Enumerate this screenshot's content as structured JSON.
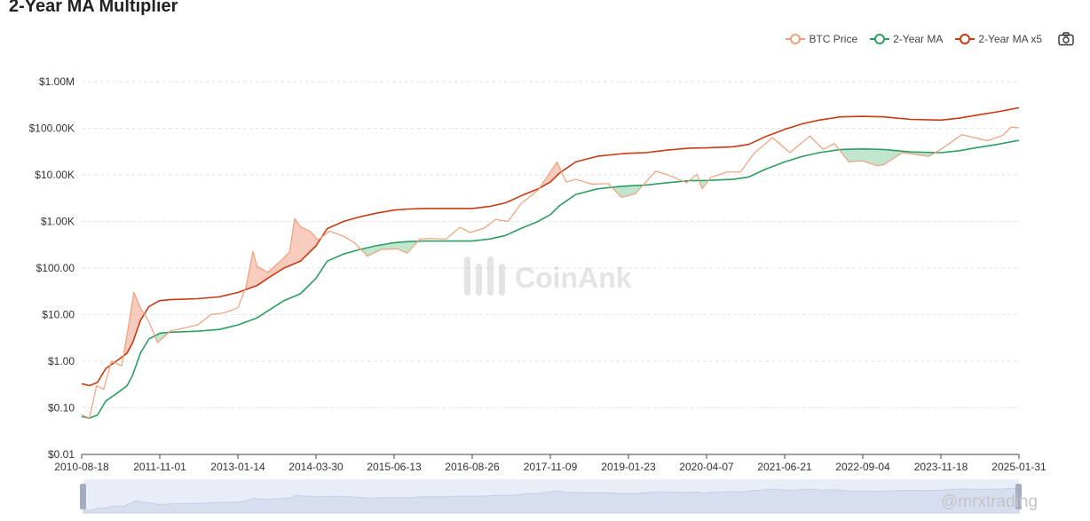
{
  "title": "2-Year MA Multiplier",
  "legend": {
    "items": [
      {
        "label": "BTC Price",
        "color": "#f0a07a"
      },
      {
        "label": "2-Year MA",
        "color": "#2e9e60"
      },
      {
        "label": "2-Year MA x5",
        "color": "#c83a12"
      }
    ],
    "camera_icon": "camera-icon"
  },
  "brand": "CoinAnk",
  "credit": "@mrxtrading",
  "chart_data": {
    "type": "line",
    "yscale": "log",
    "ylim": [
      0.01,
      1000000
    ],
    "y_ticks": [
      {
        "value": 1000000,
        "label": "$1.00M"
      },
      {
        "value": 100000,
        "label": "$100.00K"
      },
      {
        "value": 10000,
        "label": "$10.00K"
      },
      {
        "value": 1000,
        "label": "$1.00K"
      },
      {
        "value": 100,
        "label": "$100.00"
      },
      {
        "value": 10,
        "label": "$10.00"
      },
      {
        "value": 1,
        "label": "$1.00"
      },
      {
        "value": 0.1,
        "label": "$0.10"
      },
      {
        "value": 0.01,
        "label": "$0.01"
      }
    ],
    "xlim": [
      "2010-08-18",
      "2025-01-31"
    ],
    "x_ticks": [
      "2010-08-18",
      "2011-11-01",
      "2013-01-14",
      "2014-03-30",
      "2015-06-13",
      "2016-08-26",
      "2017-11-09",
      "2019-01-23",
      "2020-04-07",
      "2021-06-21",
      "2022-09-04",
      "2023-11-18",
      "2025-01-31"
    ],
    "grid": "horizontal",
    "legend_position": "top-right",
    "series": [
      {
        "name": "BTC Price",
        "color": "#f0a07a",
        "points": [
          [
            "2010-08-18",
            0.07
          ],
          [
            "2010-10-01",
            0.06
          ],
          [
            "2010-11-10",
            0.3
          ],
          [
            "2010-12-20",
            0.25
          ],
          [
            "2011-02-01",
            1.0
          ],
          [
            "2011-04-01",
            0.8
          ],
          [
            "2011-05-15",
            8
          ],
          [
            "2011-06-08",
            30
          ],
          [
            "2011-07-15",
            14
          ],
          [
            "2011-09-01",
            7
          ],
          [
            "2011-10-20",
            2.5
          ],
          [
            "2011-12-31",
            4.5
          ],
          [
            "2012-03-01",
            5
          ],
          [
            "2012-06-01",
            6
          ],
          [
            "2012-08-15",
            10
          ],
          [
            "2012-11-01",
            11
          ],
          [
            "2013-01-14",
            14
          ],
          [
            "2013-03-01",
            40
          ],
          [
            "2013-04-09",
            230
          ],
          [
            "2013-05-01",
            110
          ],
          [
            "2013-07-01",
            80
          ],
          [
            "2013-09-01",
            130
          ],
          [
            "2013-11-01",
            220
          ],
          [
            "2013-11-30",
            1150
          ],
          [
            "2014-01-01",
            780
          ],
          [
            "2014-03-01",
            600
          ],
          [
            "2014-04-10",
            400
          ],
          [
            "2014-06-15",
            620
          ],
          [
            "2014-09-01",
            480
          ],
          [
            "2014-11-01",
            350
          ],
          [
            "2015-01-14",
            180
          ],
          [
            "2015-04-01",
            250
          ],
          [
            "2015-07-01",
            260
          ],
          [
            "2015-08-25",
            210
          ],
          [
            "2015-11-05",
            420
          ],
          [
            "2016-01-01",
            430
          ],
          [
            "2016-04-01",
            420
          ],
          [
            "2016-06-17",
            750
          ],
          [
            "2016-08-15",
            580
          ],
          [
            "2016-11-01",
            720
          ],
          [
            "2017-01-05",
            1100
          ],
          [
            "2017-03-15",
            1000
          ],
          [
            "2017-06-01",
            2500
          ],
          [
            "2017-09-01",
            4700
          ],
          [
            "2017-12-17",
            19000
          ],
          [
            "2018-02-06",
            7000
          ],
          [
            "2018-04-01",
            8000
          ],
          [
            "2018-07-01",
            6300
          ],
          [
            "2018-10-01",
            6500
          ],
          [
            "2018-12-15",
            3300
          ],
          [
            "2019-03-01",
            3900
          ],
          [
            "2019-06-26",
            12000
          ],
          [
            "2019-09-01",
            10000
          ],
          [
            "2019-12-18",
            6800
          ],
          [
            "2020-02-12",
            10300
          ],
          [
            "2020-03-13",
            5000
          ],
          [
            "2020-05-01",
            8800
          ],
          [
            "2020-08-01",
            11500
          ],
          [
            "2020-10-15",
            11500
          ],
          [
            "2020-12-31",
            29000
          ],
          [
            "2021-04-14",
            63000
          ],
          [
            "2021-07-20",
            30000
          ],
          [
            "2021-11-10",
            68000
          ],
          [
            "2022-01-24",
            35000
          ],
          [
            "2022-03-28",
            47000
          ],
          [
            "2022-06-18",
            19000
          ],
          [
            "2022-09-01",
            20000
          ],
          [
            "2022-11-21",
            15800
          ],
          [
            "2023-01-01",
            16500
          ],
          [
            "2023-04-14",
            30000
          ],
          [
            "2023-09-11",
            25000
          ],
          [
            "2023-12-01",
            38000
          ],
          [
            "2024-03-14",
            73000
          ],
          [
            "2024-08-05",
            54000
          ],
          [
            "2024-11-01",
            70000
          ],
          [
            "2024-12-17",
            106000
          ],
          [
            "2025-01-31",
            102000
          ]
        ]
      },
      {
        "name": "2-Year MA",
        "color": "#2e9e60",
        "points": [
          [
            "2010-08-18",
            0.065
          ],
          [
            "2010-10-01",
            0.06
          ],
          [
            "2010-11-15",
            0.07
          ],
          [
            "2011-01-01",
            0.14
          ],
          [
            "2011-03-01",
            0.2
          ],
          [
            "2011-05-01",
            0.3
          ],
          [
            "2011-06-01",
            0.5
          ],
          [
            "2011-07-15",
            1.5
          ],
          [
            "2011-09-01",
            3
          ],
          [
            "2011-11-01",
            4
          ],
          [
            "2012-01-01",
            4.2
          ],
          [
            "2012-06-01",
            4.4
          ],
          [
            "2012-10-01",
            4.8
          ],
          [
            "2013-01-14",
            6
          ],
          [
            "2013-05-01",
            8.5
          ],
          [
            "2013-07-01",
            12
          ],
          [
            "2013-10-01",
            20
          ],
          [
            "2014-01-01",
            28
          ],
          [
            "2014-03-30",
            60
          ],
          [
            "2014-06-01",
            140
          ],
          [
            "2014-09-01",
            200
          ],
          [
            "2014-12-01",
            250
          ],
          [
            "2015-03-01",
            300
          ],
          [
            "2015-06-13",
            350
          ],
          [
            "2015-09-01",
            370
          ],
          [
            "2015-12-01",
            380
          ],
          [
            "2016-03-01",
            380
          ],
          [
            "2016-08-26",
            380
          ],
          [
            "2016-12-01",
            420
          ],
          [
            "2017-03-01",
            500
          ],
          [
            "2017-06-01",
            720
          ],
          [
            "2017-09-01",
            1000
          ],
          [
            "2017-11-09",
            1400
          ],
          [
            "2018-01-01",
            2200
          ],
          [
            "2018-04-01",
            3800
          ],
          [
            "2018-08-01",
            5000
          ],
          [
            "2018-12-01",
            5600
          ],
          [
            "2019-01-23",
            5800
          ],
          [
            "2019-05-01",
            6000
          ],
          [
            "2019-09-01",
            6800
          ],
          [
            "2020-01-01",
            7500
          ],
          [
            "2020-04-07",
            7600
          ],
          [
            "2020-09-01",
            8000
          ],
          [
            "2020-12-01",
            9000
          ],
          [
            "2021-03-01",
            13000
          ],
          [
            "2021-06-21",
            19000
          ],
          [
            "2021-10-01",
            25000
          ],
          [
            "2022-01-01",
            30000
          ],
          [
            "2022-05-01",
            35000
          ],
          [
            "2022-09-04",
            36000
          ],
          [
            "2023-01-01",
            35000
          ],
          [
            "2023-06-01",
            31000
          ],
          [
            "2023-11-18",
            30000
          ],
          [
            "2024-03-01",
            33000
          ],
          [
            "2024-06-01",
            38000
          ],
          [
            "2024-10-01",
            45000
          ],
          [
            "2025-01-31",
            55000
          ]
        ]
      },
      {
        "name": "2-Year MA x5",
        "color": "#c83a12",
        "points": [
          [
            "2010-08-18",
            0.33
          ],
          [
            "2010-10-01",
            0.3
          ],
          [
            "2010-11-15",
            0.35
          ],
          [
            "2011-01-01",
            0.7
          ],
          [
            "2011-03-01",
            1.0
          ],
          [
            "2011-05-01",
            1.5
          ],
          [
            "2011-06-01",
            2.5
          ],
          [
            "2011-07-15",
            7.5
          ],
          [
            "2011-09-01",
            15
          ],
          [
            "2011-11-01",
            20
          ],
          [
            "2012-01-01",
            21
          ],
          [
            "2012-06-01",
            22
          ],
          [
            "2012-10-01",
            24
          ],
          [
            "2013-01-14",
            30
          ],
          [
            "2013-05-01",
            42
          ],
          [
            "2013-07-01",
            60
          ],
          [
            "2013-10-01",
            100
          ],
          [
            "2014-01-01",
            140
          ],
          [
            "2014-03-30",
            300
          ],
          [
            "2014-06-01",
            700
          ],
          [
            "2014-09-01",
            1000
          ],
          [
            "2014-12-01",
            1250
          ],
          [
            "2015-03-01",
            1500
          ],
          [
            "2015-06-13",
            1750
          ],
          [
            "2015-09-01",
            1850
          ],
          [
            "2015-12-01",
            1900
          ],
          [
            "2016-03-01",
            1900
          ],
          [
            "2016-08-26",
            1900
          ],
          [
            "2016-12-01",
            2100
          ],
          [
            "2017-03-01",
            2500
          ],
          [
            "2017-06-01",
            3600
          ],
          [
            "2017-09-01",
            5000
          ],
          [
            "2017-11-09",
            7000
          ],
          [
            "2018-01-01",
            11000
          ],
          [
            "2018-04-01",
            19000
          ],
          [
            "2018-08-01",
            25000
          ],
          [
            "2018-12-01",
            28000
          ],
          [
            "2019-01-23",
            29000
          ],
          [
            "2019-05-01",
            30000
          ],
          [
            "2019-09-01",
            34000
          ],
          [
            "2020-01-01",
            37500
          ],
          [
            "2020-04-07",
            38000
          ],
          [
            "2020-09-01",
            40000
          ],
          [
            "2020-12-01",
            45000
          ],
          [
            "2021-03-01",
            65000
          ],
          [
            "2021-06-21",
            95000
          ],
          [
            "2021-10-01",
            125000
          ],
          [
            "2022-01-01",
            150000
          ],
          [
            "2022-05-01",
            175000
          ],
          [
            "2022-09-04",
            180000
          ],
          [
            "2023-01-01",
            175000
          ],
          [
            "2023-06-01",
            155000
          ],
          [
            "2023-11-18",
            150000
          ],
          [
            "2024-03-01",
            165000
          ],
          [
            "2024-06-01",
            190000
          ],
          [
            "2024-10-01",
            225000
          ],
          [
            "2025-01-31",
            275000
          ]
        ]
      }
    ]
  }
}
